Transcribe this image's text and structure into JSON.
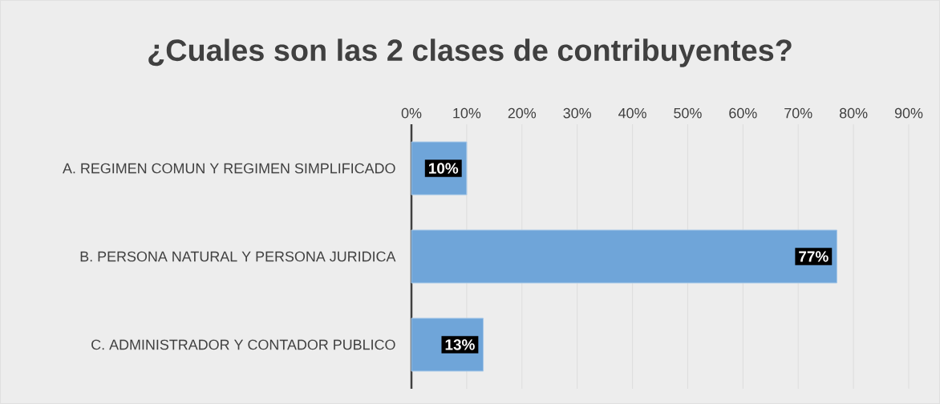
{
  "chart_data": {
    "type": "bar",
    "orientation": "horizontal",
    "title": "¿Cuales son las 2 clases de contribuyentes?",
    "categories": [
      "A. REGIMEN COMUN Y REGIMEN SIMPLIFICADO",
      "B. PERSONA NATURAL Y PERSONA JURIDICA",
      "C. ADMINISTRADOR Y CONTADOR PUBLICO"
    ],
    "values": [
      10,
      77,
      13
    ],
    "color": "#6fa5d9",
    "value_labels": [
      "10%",
      "77%",
      "13%"
    ],
    "xlim": [
      0,
      90
    ],
    "xticks": [
      {
        "value": 0,
        "label": "0%"
      },
      {
        "value": 10,
        "label": "10%"
      },
      {
        "value": 20,
        "label": "20%"
      },
      {
        "value": 30,
        "label": "30%"
      },
      {
        "value": 40,
        "label": "40%"
      },
      {
        "value": 50,
        "label": "50%"
      },
      {
        "value": 60,
        "label": "60%"
      },
      {
        "value": 70,
        "label": "70%"
      },
      {
        "value": 80,
        "label": "80%"
      },
      {
        "value": 90,
        "label": "90%"
      }
    ],
    "grid": "x"
  }
}
